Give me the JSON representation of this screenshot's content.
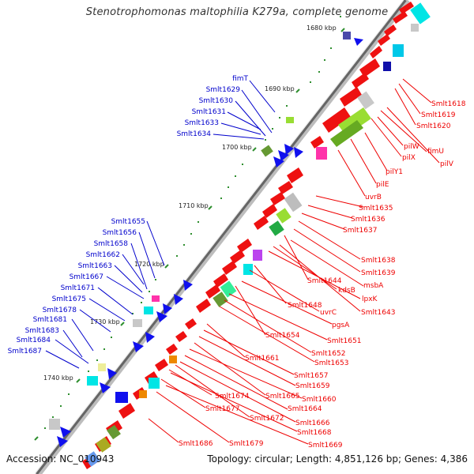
{
  "title": "Stenotrophomonas maltophilia K279a, complete genome",
  "footer": {
    "accession": "Accession: NC_010943",
    "summary": "Topology: circular; Length: 4,851,126 bp; Genes: 4,386"
  },
  "kbp_labels": [
    "1680 kbp",
    "1690 kbp",
    "1700 kbp",
    "1710 kbp",
    "1720 kbp",
    "1730 kbp",
    "1740 kbp"
  ],
  "left_labels": [
    "fimT",
    "Smlt1629",
    "Smlt1630",
    "Smlt1631",
    "Smlt1633",
    "Smlt1634",
    "Smlt1655",
    "Smlt1656",
    "Smlt1658",
    "Smlt1662",
    "Smlt1663",
    "Smlt1667",
    "Smlt1671",
    "Smlt1675",
    "Smlt1678",
    "Smlt1681",
    "Smlt1683",
    "Smlt1684",
    "Smlt1687"
  ],
  "right_labels": [
    "Smlt1618",
    "Smlt1619",
    "Smlt1620",
    "pilW",
    "fimU",
    "pilX",
    "pilV",
    "pilY1",
    "pilE",
    "uvrB",
    "Smlt1635",
    "Smlt1636",
    "Smlt1637",
    "Smlt1638",
    "Smlt1639",
    "Smlt1644",
    "msbA",
    "kdsB",
    "lpxK",
    "Smlt1643",
    "Smlt1648",
    "uvrC",
    "pgsA",
    "Smlt1654",
    "Smlt1651",
    "Smlt1652",
    "Smlt1653",
    "Smlt1661",
    "Smlt1657",
    "Smlt1659",
    "Smlt1665",
    "Smlt1660",
    "Smlt1674",
    "Smlt1664",
    "Smlt1677",
    "Smlt1672",
    "Smlt1666",
    "Smlt1668",
    "Smlt1686",
    "Smlt1679",
    "Smlt1669"
  ],
  "colors": {
    "forward_label": "#0000cc",
    "reverse_label": "#ee0000",
    "backbone": "#666666",
    "tick": "#2f8f2f",
    "forward_gene": "#1010ee",
    "reverse_gene": "#ee1111"
  }
}
